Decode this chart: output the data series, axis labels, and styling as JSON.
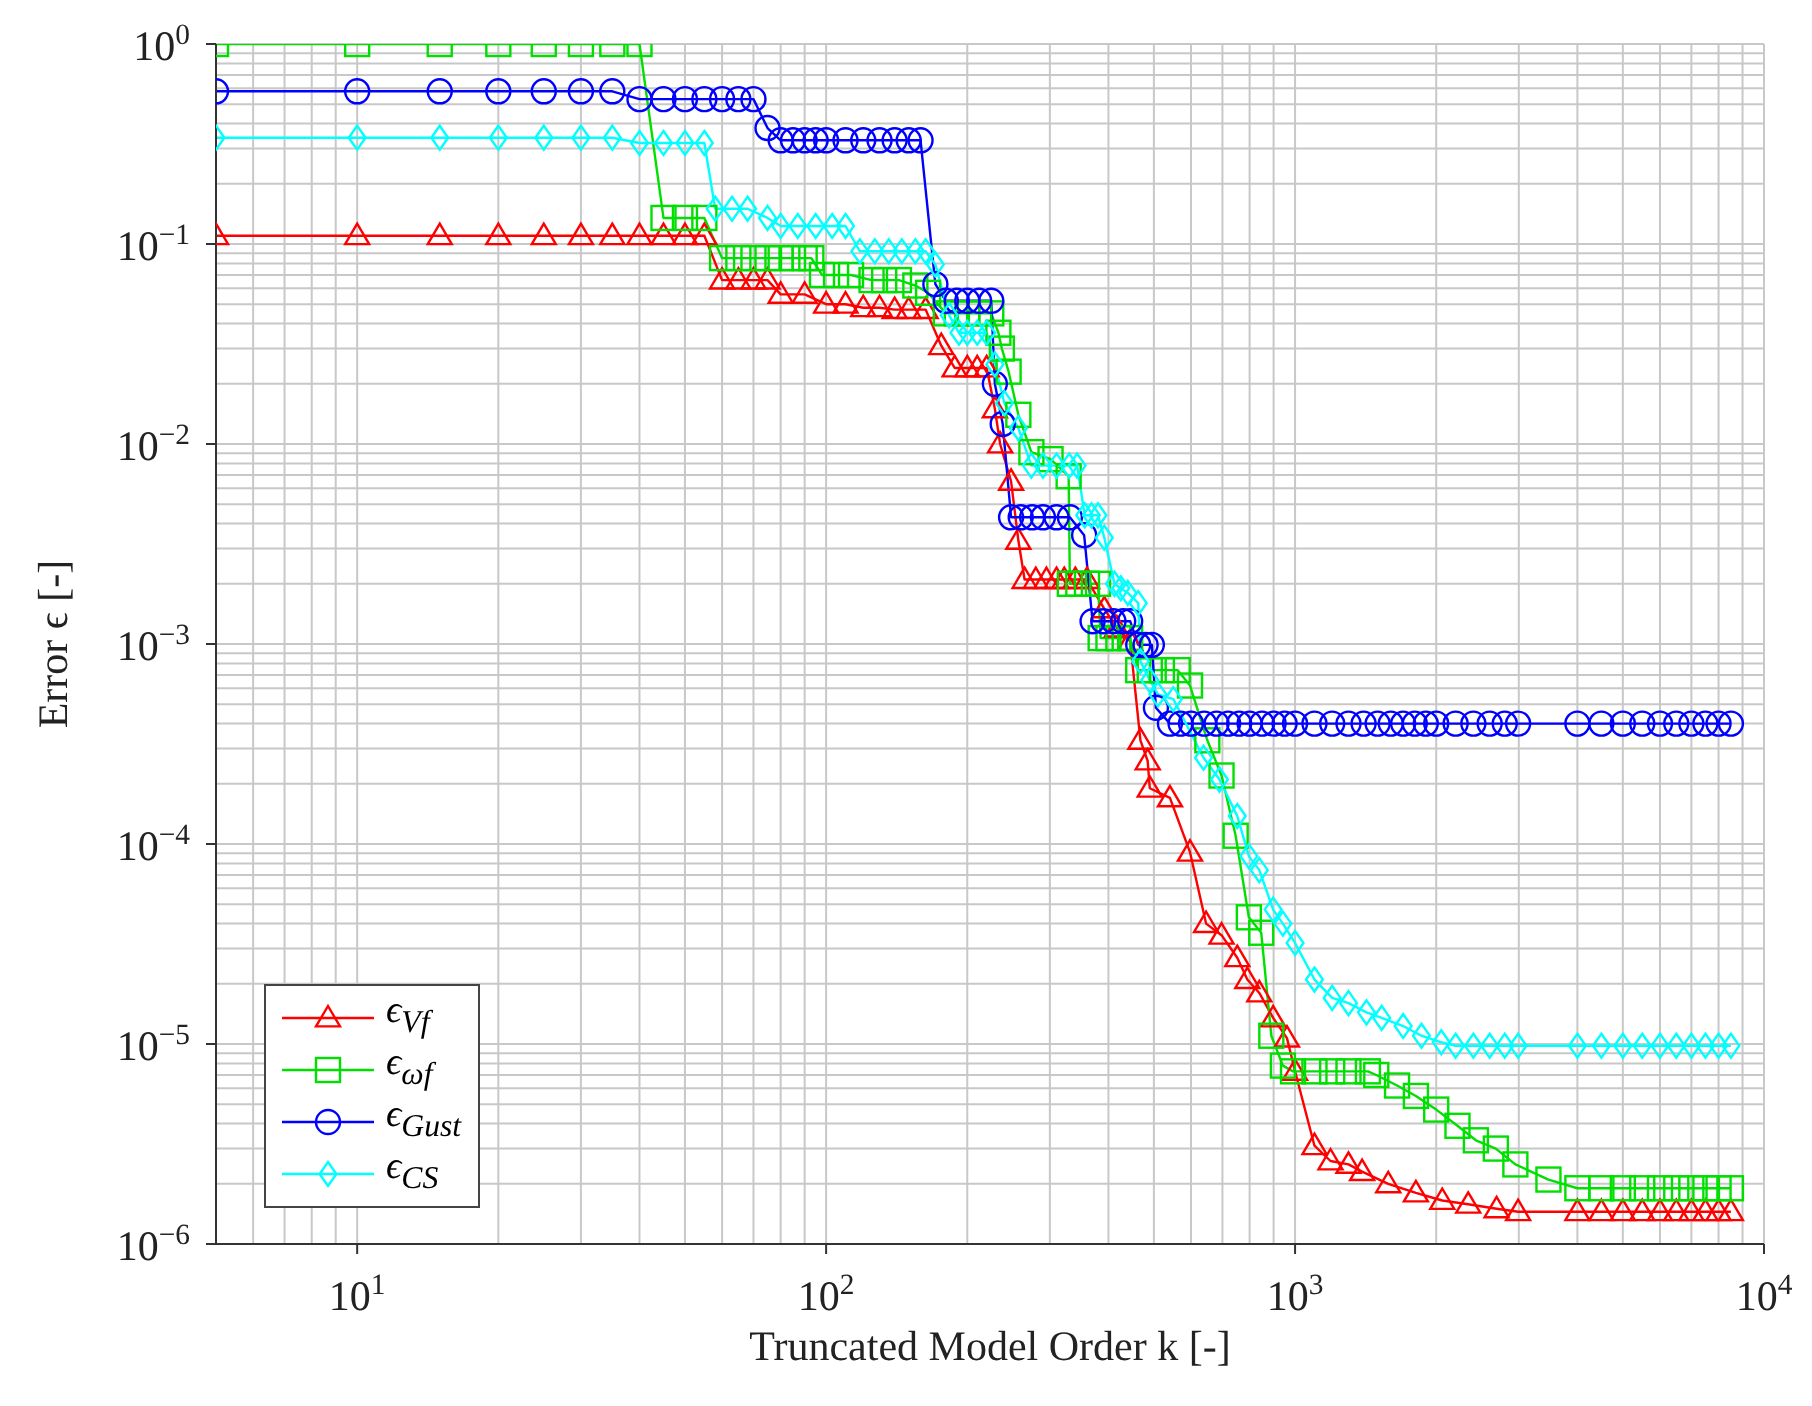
{
  "chart_data": {
    "type": "line",
    "xlabel": "Truncated Model Order k [-]",
    "ylabel": "Error ϵ [-]",
    "log": "xy",
    "grid": true,
    "legend": "bottom left",
    "xlim": [
      5,
      10000
    ],
    "xticks": [
      {
        "value": 10,
        "label": "10$^{1}$"
      },
      {
        "value": 100,
        "label": "10$^{2}$"
      },
      {
        "value": 1000,
        "label": "10$^{3}$"
      },
      {
        "value": 10000,
        "label": "10$^{4}$"
      }
    ],
    "ylim": [
      1e-06,
      1
    ],
    "yticks": [
      {
        "value": 1e-06,
        "label": "10$^{−6}$"
      },
      {
        "value": 1e-05,
        "label": "10$^{−5}$"
      },
      {
        "value": 0.0001,
        "label": "10$^{−4}$"
      },
      {
        "value": 0.001,
        "label": "10$^{−3}$"
      },
      {
        "value": 0.01,
        "label": "10$^{−2}$"
      },
      {
        "value": 0.1,
        "label": "10$^{−1}$"
      },
      {
        "value": 1,
        "label": "10$^{0}$"
      }
    ],
    "series": [
      {
        "name": "ϵ$_{V}$$_{f}$",
        "color": "#ff0000",
        "marker": "triangle",
        "x": [
          5,
          10,
          15,
          20,
          25,
          30,
          35,
          40,
          45,
          50,
          55,
          60,
          65,
          70,
          75,
          80,
          90,
          100,
          110,
          120,
          130,
          140,
          150,
          163,
          176,
          188,
          200,
          210,
          220,
          229,
          235,
          248,
          257,
          265,
          280,
          295,
          310,
          322,
          340,
          360,
          392,
          417,
          445,
          468,
          485,
          490,
          541,
          597,
          646,
          697,
          753,
          791,
          839,
          898,
          961,
          1000,
          1100,
          1190,
          1300,
          1390,
          1580,
          1810,
          2060,
          2340,
          2690,
          2990,
          4000,
          4500,
          5000,
          5500,
          6000,
          6500,
          7000,
          7500,
          8000,
          8500
        ],
        "values": [
          0.11,
          0.11,
          0.11,
          0.11,
          0.11,
          0.11,
          0.11,
          0.11,
          0.11,
          0.11,
          0.11,
          0.066,
          0.066,
          0.066,
          0.066,
          0.056,
          0.056,
          0.05,
          0.05,
          0.048,
          0.048,
          0.047,
          0.047,
          0.047,
          0.031,
          0.024,
          0.024,
          0.024,
          0.024,
          0.015,
          0.01,
          0.0065,
          0.0033,
          0.0021,
          0.0021,
          0.0021,
          0.0021,
          0.0021,
          0.0021,
          0.0021,
          0.0015,
          0.0012,
          0.00103,
          0.00033,
          0.00026,
          0.00019,
          0.00017,
          9.1e-05,
          4e-05,
          3.5e-05,
          2.7e-05,
          2.1e-05,
          1.8e-05,
          1.35e-05,
          1.07e-05,
          7.3e-06,
          3.1e-06,
          2.6e-06,
          2.5e-06,
          2.3e-06,
          2e-06,
          1.8e-06,
          1.65e-06,
          1.58e-06,
          1.5e-06,
          1.45e-06,
          1.45e-06,
          1.45e-06,
          1.45e-06,
          1.45e-06,
          1.45e-06,
          1.45e-06,
          1.45e-06,
          1.45e-06,
          1.45e-06,
          1.45e-06
        ]
      },
      {
        "name": "ϵ$_{ω}$$_{f}$",
        "color": "#00e000",
        "marker": "square",
        "x": [
          5,
          10,
          15,
          20,
          25,
          30,
          35,
          40,
          45,
          50,
          55,
          60,
          65,
          70,
          75,
          80,
          85,
          90,
          93,
          98,
          105,
          113,
          125,
          133,
          143,
          155,
          165,
          180,
          190,
          200,
          212,
          225,
          233,
          237,
          245,
          257,
          274,
          301,
          329,
          331,
          345,
          360,
          380,
          385,
          400,
          420,
          445,
          463,
          490,
          520,
          562,
          597,
          650,
          697,
          747,
          797,
          847,
          890,
          942,
          990,
          1100,
          1200,
          1300,
          1430,
          1490,
          1650,
          1810,
          2000,
          2220,
          2430,
          2680,
          2950,
          3470,
          4000,
          4500,
          5000,
          5500,
          6000,
          6500,
          7000,
          7500,
          8000,
          8500
        ],
        "values": [
          1,
          1,
          1,
          1,
          1,
          1,
          1,
          1,
          0.135,
          0.135,
          0.135,
          0.085,
          0.085,
          0.085,
          0.085,
          0.085,
          0.085,
          0.085,
          0.085,
          0.07,
          0.07,
          0.07,
          0.066,
          0.066,
          0.066,
          0.062,
          0.057,
          0.045,
          0.045,
          0.045,
          0.045,
          0.045,
          0.036,
          0.03,
          0.023,
          0.014,
          0.0091,
          0.0084,
          0.0069,
          0.002,
          0.002,
          0.002,
          0.002,
          0.00107,
          0.00107,
          0.00107,
          0.00107,
          0.00074,
          0.00074,
          0.00074,
          0.00074,
          0.00062,
          0.00033,
          0.00022,
          0.00011,
          4.3e-05,
          3.6e-05,
          1.1e-05,
          7.8e-06,
          7.3e-06,
          7.3e-06,
          7.3e-06,
          7.3e-06,
          7.3e-06,
          7e-06,
          6.2e-06,
          5.5e-06,
          4.7e-06,
          3.9e-06,
          3.3e-06,
          3e-06,
          2.5e-06,
          2.1e-06,
          1.9e-06,
          1.9e-06,
          1.9e-06,
          1.9e-06,
          1.9e-06,
          1.9e-06,
          1.9e-06,
          1.9e-06,
          1.9e-06,
          1.9e-06
        ]
      },
      {
        "name": "ϵ$_{Gust}$",
        "color": "#0000ff",
        "marker": "circle",
        "x": [
          5,
          10,
          15,
          20,
          25,
          30,
          35,
          40,
          45,
          50,
          55,
          60,
          65,
          70,
          75,
          80,
          85,
          90,
          95,
          100,
          110,
          120,
          130,
          140,
          150,
          159,
          171,
          180,
          190,
          200,
          212,
          225,
          229,
          238,
          248,
          260,
          275,
          290,
          310,
          331,
          355,
          370,
          390,
          410,
          430,
          445,
          463,
          480,
          495,
          505,
          541,
          570,
          600,
          640,
          680,
          720,
          760,
          800,
          850,
          900,
          950,
          1000,
          1100,
          1200,
          1300,
          1400,
          1500,
          1600,
          1700,
          1800,
          1900,
          2000,
          2200,
          2400,
          2600,
          2800,
          2990,
          4000,
          4500,
          5000,
          5500,
          6000,
          6500,
          7000,
          7500,
          8000,
          8500
        ],
        "values": [
          0.58,
          0.58,
          0.58,
          0.58,
          0.58,
          0.58,
          0.58,
          0.53,
          0.53,
          0.53,
          0.53,
          0.53,
          0.53,
          0.53,
          0.38,
          0.33,
          0.33,
          0.33,
          0.33,
          0.33,
          0.33,
          0.33,
          0.33,
          0.33,
          0.33,
          0.33,
          0.063,
          0.052,
          0.052,
          0.052,
          0.052,
          0.052,
          0.02,
          0.0126,
          0.0043,
          0.0043,
          0.0043,
          0.0043,
          0.0043,
          0.0043,
          0.0035,
          0.0013,
          0.0013,
          0.0013,
          0.0013,
          0.0013,
          0.00099,
          0.00099,
          0.00099,
          0.00048,
          0.0004,
          0.0004,
          0.0004,
          0.0004,
          0.0004,
          0.0004,
          0.0004,
          0.0004,
          0.0004,
          0.0004,
          0.0004,
          0.0004,
          0.0004,
          0.0004,
          0.0004,
          0.0004,
          0.0004,
          0.0004,
          0.0004,
          0.0004,
          0.0004,
          0.0004,
          0.0004,
          0.0004,
          0.0004,
          0.0004,
          0.0004,
          0.0004,
          0.0004,
          0.0004,
          0.0004,
          0.0004,
          0.0004,
          0.0004,
          0.0004,
          0.0004,
          0.0004
        ]
      },
      {
        "name": "ϵ$_{CS}$",
        "color": "#00ffff",
        "marker": "diamond",
        "x": [
          5,
          10,
          15,
          20,
          25,
          30,
          35,
          40,
          45,
          50,
          55,
          58,
          63,
          68,
          75,
          80,
          87,
          95,
          103,
          110,
          118,
          127,
          136,
          145,
          155,
          163,
          171,
          183,
          192,
          200,
          210,
          220,
          229,
          240,
          257,
          274,
          290,
          310,
          330,
          343,
          356,
          368,
          380,
          392,
          412,
          425,
          440,
          463,
          468,
          490,
          510,
          550,
          638,
          690,
          753,
          797,
          839,
          898,
          942,
          1000,
          1100,
          1200,
          1300,
          1420,
          1530,
          1700,
          1860,
          2050,
          2200,
          2400,
          2600,
          2800,
          2990,
          4000,
          4500,
          5000,
          5500,
          6000,
          6500,
          7000,
          7500,
          8000,
          8500
        ],
        "values": [
          0.34,
          0.34,
          0.34,
          0.34,
          0.34,
          0.34,
          0.34,
          0.32,
          0.32,
          0.32,
          0.32,
          0.15,
          0.15,
          0.15,
          0.135,
          0.123,
          0.123,
          0.123,
          0.123,
          0.123,
          0.092,
          0.092,
          0.092,
          0.092,
          0.092,
          0.092,
          0.079,
          0.044,
          0.036,
          0.036,
          0.036,
          0.036,
          0.025,
          0.016,
          0.012,
          0.0078,
          0.0078,
          0.0078,
          0.0078,
          0.0078,
          0.0044,
          0.0044,
          0.0044,
          0.0034,
          0.002,
          0.0019,
          0.0018,
          0.0016,
          0.00082,
          0.00066,
          0.00056,
          0.00053,
          0.00027,
          0.00021,
          0.000138,
          8.7e-05,
          7.4e-05,
          4.7e-05,
          4e-05,
          3.2e-05,
          2.1e-05,
          1.7e-05,
          1.6e-05,
          1.44e-05,
          1.35e-05,
          1.23e-05,
          1.1e-05,
          1.02e-05,
          9.8e-06,
          9.8e-06,
          9.8e-06,
          9.8e-06,
          9.8e-06,
          9.8e-06,
          9.8e-06,
          9.8e-06,
          9.8e-06,
          9.8e-06,
          9.8e-06,
          9.8e-06,
          9.8e-06,
          9.8e-06,
          9.8e-06
        ]
      }
    ]
  }
}
